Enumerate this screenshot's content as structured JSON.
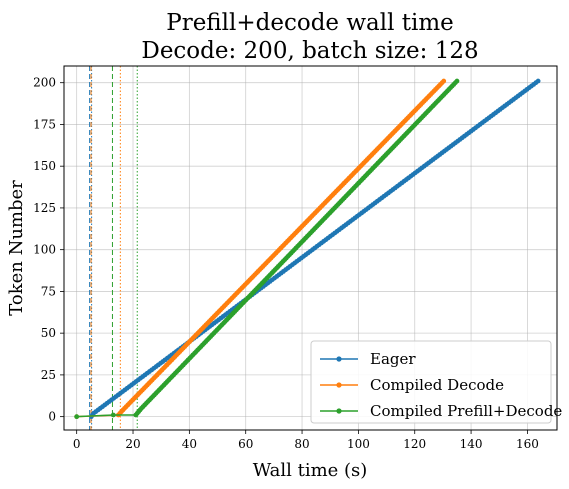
{
  "chart_data": {
    "type": "line",
    "title": "Prefill+decode wall time",
    "subtitle": "Decode: 200, batch size: 128",
    "xlabel": "Wall time (s)",
    "ylabel": "Token Number",
    "xlim": [
      -4.5,
      170.5
    ],
    "ylim": [
      -8,
      210
    ],
    "xticks": [
      0,
      20,
      40,
      60,
      80,
      100,
      120,
      140,
      160
    ],
    "yticks": [
      0,
      25,
      50,
      75,
      100,
      125,
      150,
      175,
      200
    ],
    "grid": true,
    "legend_position": "lower-right",
    "series": [
      {
        "name": "Eager",
        "color": "#1f77b4",
        "start": [
          5.2,
          0
        ],
        "end": [
          163.8,
          201
        ],
        "points": [
          [
            5.2,
            0
          ],
          [
            6.0,
            2
          ],
          [
            163.8,
            201
          ]
        ]
      },
      {
        "name": "Compiled Decode",
        "color": "#ff7f0e",
        "start": [
          0,
          0
        ],
        "end": [
          130.3,
          201
        ],
        "points": [
          [
            0,
            0
          ],
          [
            14.8,
            1
          ],
          [
            17.0,
            5
          ],
          [
            130.3,
            201
          ]
        ]
      },
      {
        "name": "Compiled Prefill+Decode",
        "color": "#2ca02c",
        "start": [
          0,
          0
        ],
        "end": [
          135.0,
          201
        ],
        "points": [
          [
            0,
            0
          ],
          [
            13.0,
            1
          ],
          [
            21.0,
            1
          ],
          [
            23.0,
            5
          ],
          [
            135.0,
            201
          ]
        ]
      }
    ],
    "vlines": [
      {
        "x": 4.6,
        "color": "#1f77b4",
        "style": "dashed"
      },
      {
        "x": 5.3,
        "color": "#1f77b4",
        "style": "dotted"
      },
      {
        "x": 5.1,
        "color": "#ff7f0e",
        "style": "dashed"
      },
      {
        "x": 15.5,
        "color": "#ff7f0e",
        "style": "dotted"
      },
      {
        "x": 12.7,
        "color": "#2ca02c",
        "style": "dashed"
      },
      {
        "x": 21.5,
        "color": "#2ca02c",
        "style": "dotted"
      }
    ]
  }
}
